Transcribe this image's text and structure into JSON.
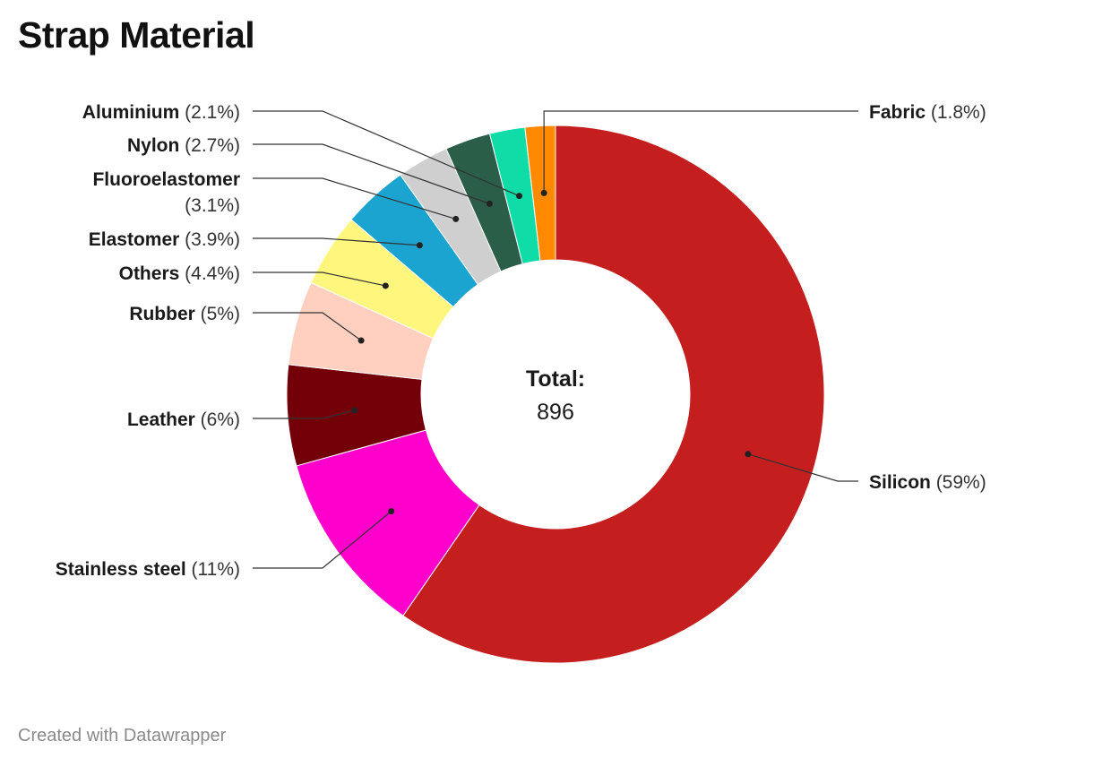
{
  "chart_data": {
    "type": "pie",
    "title": "Strap Material",
    "center_label": {
      "title": "Total:",
      "value": "896"
    },
    "slices": [
      {
        "name": "Silicon",
        "value": 59,
        "value_label": "(59%)",
        "color": "#c41e1e"
      },
      {
        "name": "Stainless steel",
        "value": 11,
        "value_label": "(11%)",
        "color": "#ff00cc"
      },
      {
        "name": "Leather",
        "value": 6,
        "value_label": "(6%)",
        "color": "#730009"
      },
      {
        "name": "Rubber",
        "value": 5,
        "value_label": "(5%)",
        "color": "#ffd0bf"
      },
      {
        "name": "Others",
        "value": 4.4,
        "value_label": "(4.4%)",
        "color": "#fff67e"
      },
      {
        "name": "Elastomer",
        "value": 3.9,
        "value_label": "(3.9%)",
        "color": "#1ba4d0"
      },
      {
        "name": "Fluoroelastomer",
        "value": 3.1,
        "value_label": "(3.1%)",
        "color": "#cfcfcf"
      },
      {
        "name": "Nylon",
        "value": 2.7,
        "value_label": "(2.7%)",
        "color": "#2a5e48"
      },
      {
        "name": "Aluminium",
        "value": 2.1,
        "value_label": "(2.1%)",
        "color": "#0fdca6"
      },
      {
        "name": "Fabric",
        "value": 1.8,
        "value_label": "(1.8%)",
        "color": "#ff8a00"
      }
    ]
  },
  "footer": {
    "credit": "Created with Datawrapper"
  }
}
